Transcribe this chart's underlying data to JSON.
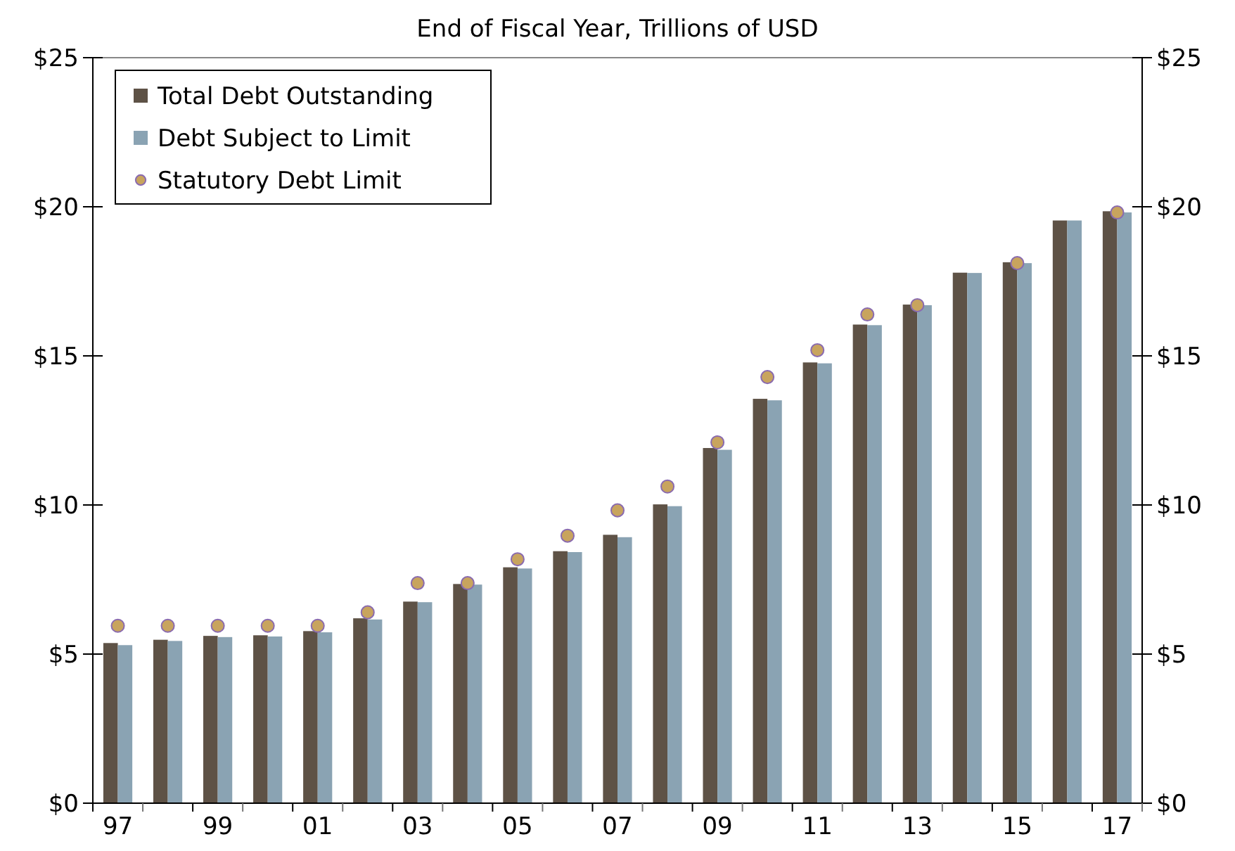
{
  "chart_data": {
    "type": "bar",
    "title": "End of Fiscal Year, Trillions of USD",
    "categories": [
      "97",
      null,
      "99",
      null,
      "01",
      null,
      "03",
      null,
      "05",
      null,
      "07",
      null,
      "09",
      null,
      "11",
      null,
      "13",
      null,
      "15",
      null,
      "17"
    ],
    "series": [
      {
        "name": "Total Debt Outstanding",
        "color": "#5e5246",
        "values": [
          5.37,
          5.48,
          5.61,
          5.63,
          5.77,
          6.2,
          6.76,
          7.35,
          7.91,
          8.45,
          9.0,
          10.02,
          11.91,
          13.56,
          14.78,
          16.05,
          16.72,
          17.79,
          18.14,
          19.54,
          19.85
        ]
      },
      {
        "name": "Debt Subject to Limit",
        "color": "#8aa3b3",
        "values": [
          5.3,
          5.44,
          5.57,
          5.59,
          5.73,
          6.16,
          6.74,
          7.33,
          7.87,
          8.42,
          8.92,
          9.96,
          11.85,
          13.51,
          14.75,
          16.03,
          16.7,
          17.78,
          18.11,
          19.54,
          19.81
        ]
      },
      {
        "name": "Statutory Debt Limit",
        "type": "scatter",
        "color": "#c8a45e",
        "values": [
          5.95,
          5.95,
          5.95,
          5.95,
          5.95,
          6.4,
          7.38,
          7.38,
          8.18,
          8.97,
          9.82,
          10.62,
          12.1,
          14.29,
          15.19,
          16.39,
          16.7,
          null,
          18.11,
          null,
          19.81
        ]
      }
    ],
    "ylim": [
      0,
      25
    ],
    "yticks": [
      {
        "value": 0,
        "label": "$0"
      },
      {
        "value": 5,
        "label": "$5"
      },
      {
        "value": 10,
        "label": "$10"
      },
      {
        "value": 15,
        "label": "$15"
      },
      {
        "value": 20,
        "label": "$20"
      },
      {
        "value": 25,
        "label": "$25"
      }
    ],
    "y2lim": [
      0,
      25
    ],
    "y2ticks": [
      {
        "value": 0,
        "label": "$0"
      },
      {
        "value": 5,
        "label": "$5"
      },
      {
        "value": 10,
        "label": "$10"
      },
      {
        "value": 15,
        "label": "$15"
      },
      {
        "value": 20,
        "label": "$20"
      },
      {
        "value": 25,
        "label": "$25"
      }
    ],
    "grid": false,
    "legend": "top left",
    "marker": "circle"
  }
}
